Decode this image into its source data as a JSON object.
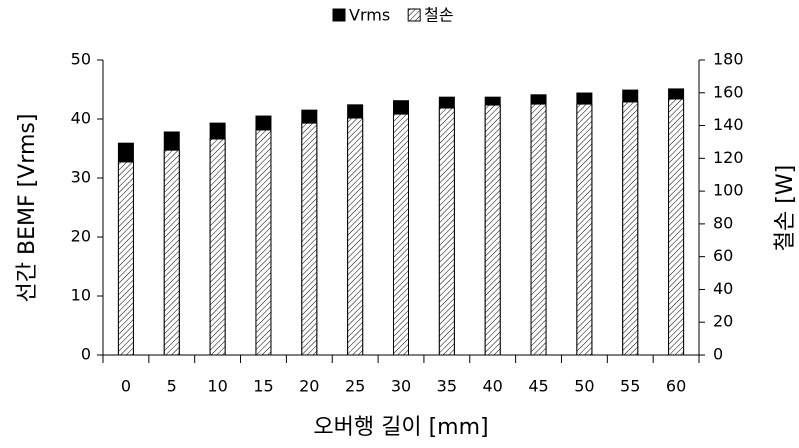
{
  "chart_data": {
    "type": "bar",
    "xlabel": "오버행 길이 [mm]",
    "ylabel": "선간  BEMF [Vrms]",
    "y2label": "철손 [W]",
    "categories": [
      "0",
      "5",
      "10",
      "15",
      "20",
      "25",
      "30",
      "35",
      "40",
      "45",
      "50",
      "55",
      "60"
    ],
    "series": [
      {
        "name": "Vrms",
        "color": "#000000",
        "values": [
          35.9,
          37.8,
          39.3,
          40.5,
          41.5,
          42.4,
          43.1,
          43.7,
          43.7,
          44.1,
          44.4,
          44.9,
          45.1
        ]
      },
      {
        "name": "철손",
        "color": "#000000",
        "hatch": true,
        "axis": "y2",
        "values": [
          117.8,
          125,
          131.8,
          137.3,
          141.5,
          144.6,
          147,
          150.7,
          152.5,
          153.1,
          153.1,
          154.4,
          156.2
        ]
      }
    ],
    "ylim": [
      0,
      50
    ],
    "yticks": [
      0,
      10,
      20,
      30,
      40,
      50
    ],
    "y2lim": [
      0,
      180
    ],
    "y2ticks": [
      0,
      20,
      40,
      60,
      80,
      100,
      120,
      140,
      160,
      180
    ],
    "grid": false,
    "legend": "top"
  }
}
